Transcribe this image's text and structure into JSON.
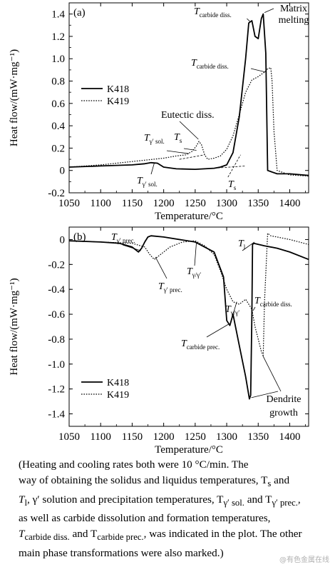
{
  "chart_data": [
    {
      "panel_label": "(a)",
      "type": "line",
      "xlabel": "Temperature/°C",
      "ylabel": "Heat flow/(mW·mg⁻¹)",
      "xlim": [
        1050,
        1430
      ],
      "ylim": [
        -0.2,
        1.5
      ],
      "xticks": [
        "1050",
        "1100",
        "1150",
        "1200",
        "1250",
        "1300",
        "1350",
        "1400"
      ],
      "yticks": [
        "1.4",
        "1.2",
        "1.0",
        "0.8",
        "0.6",
        "0.4",
        "0.2",
        "0",
        "-0.2"
      ],
      "legend": [
        "K418",
        "K419"
      ],
      "series": [
        {
          "name": "K418",
          "x": [
            1050,
            1100,
            1150,
            1170,
            1180,
            1190,
            1200,
            1220,
            1250,
            1280,
            1290,
            1300,
            1310,
            1320,
            1330,
            1335,
            1340,
            1345,
            1350,
            1355,
            1358,
            1362,
            1365,
            1380,
            1400,
            1430
          ],
          "y": [
            0.03,
            0.04,
            0.05,
            0.06,
            0.07,
            0.065,
            0.03,
            0.015,
            0.01,
            0.02,
            0.03,
            0.05,
            0.16,
            0.48,
            1.0,
            1.32,
            1.34,
            1.2,
            1.18,
            1.36,
            1.4,
            1.05,
            0.0,
            -0.03,
            -0.03,
            -0.045
          ]
        },
        {
          "name": "K419",
          "x": [
            1050,
            1100,
            1150,
            1200,
            1220,
            1235,
            1245,
            1252,
            1256,
            1260,
            1265,
            1270,
            1280,
            1290,
            1300,
            1310,
            1320,
            1330,
            1340,
            1350,
            1355,
            1360,
            1365,
            1370,
            1372,
            1375,
            1380,
            1400,
            1430
          ],
          "y": [
            0.03,
            0.05,
            0.08,
            0.11,
            0.13,
            0.14,
            0.17,
            0.22,
            0.26,
            0.23,
            0.14,
            0.1,
            0.11,
            0.13,
            0.19,
            0.31,
            0.5,
            0.7,
            0.81,
            0.84,
            0.86,
            0.88,
            0.91,
            0.92,
            0.8,
            0.35,
            0.0,
            -0.04,
            -0.05
          ]
        }
      ],
      "annotations": [
        {
          "main": "T",
          "sub": "carbide diss.",
          "at_x": 1340,
          "at_y": 1.34
        },
        {
          "main": "Matrix",
          "line2": "melting",
          "at_x": 1358,
          "at_y": 1.4
        },
        {
          "main": "T",
          "sub": "carbide diss.",
          "at_x": 1370,
          "at_y": 0.92
        },
        {
          "main": "Eutectic diss.",
          "at_x": 1256,
          "at_y": 0.26
        },
        {
          "main": "T",
          "sub": "γ′ sol.",
          "at_x": 1230,
          "at_y": 0.14
        },
        {
          "main": "T",
          "sub": "s",
          "at_x": 1255,
          "at_y": 0.16
        },
        {
          "main": "T",
          "sub": "γ′ sol.",
          "at_x": 1180,
          "at_y": 0.07
        },
        {
          "main": "T",
          "sub": "s",
          "at_x": 1308,
          "at_y": 0.03
        }
      ]
    },
    {
      "panel_label": "(b)",
      "type": "line",
      "xlabel": "Temperature/°C",
      "ylabel": "Heat flow/(mW·mg⁻¹)",
      "xlim": [
        1050,
        1430
      ],
      "ylim": [
        -1.5,
        0.1
      ],
      "xticks": [
        "1050",
        "1100",
        "1150",
        "1200",
        "1250",
        "1300",
        "1350",
        "1400"
      ],
      "yticks": [
        "0",
        "-0.2",
        "-0.4",
        "-0.6",
        "-0.8",
        "-1.0",
        "-1.2",
        "-1.4"
      ],
      "legend": [
        "K418",
        "K419"
      ],
      "series": [
        {
          "name": "K418",
          "x": [
            1050,
            1100,
            1130,
            1150,
            1160,
            1165,
            1170,
            1175,
            1180,
            1200,
            1250,
            1280,
            1295,
            1300,
            1305,
            1310,
            1320,
            1330,
            1336,
            1338,
            1340,
            1341,
            1343,
            1360,
            1380,
            1400,
            1430
          ],
          "y": [
            -0.01,
            -0.02,
            -0.03,
            -0.06,
            -0.1,
            -0.07,
            -0.02,
            0.02,
            0.03,
            0.02,
            -0.02,
            -0.1,
            -0.3,
            -0.65,
            -0.69,
            -0.6,
            -0.85,
            -1.1,
            -1.28,
            -1.25,
            -0.6,
            -0.04,
            -0.03,
            -0.05,
            -0.07,
            -0.1,
            -0.16
          ]
        },
        {
          "name": "K419",
          "x": [
            1050,
            1100,
            1150,
            1170,
            1178,
            1185,
            1195,
            1210,
            1230,
            1250,
            1265,
            1280,
            1290,
            1300,
            1310,
            1320,
            1330,
            1340,
            1345,
            1350,
            1355,
            1358,
            1360,
            1365,
            1370,
            1380,
            1400,
            1430
          ],
          "y": [
            -0.01,
            -0.02,
            -0.03,
            -0.06,
            -0.12,
            -0.16,
            -0.12,
            -0.06,
            -0.02,
            -0.01,
            -0.05,
            -0.12,
            -0.25,
            -0.4,
            -0.5,
            -0.52,
            -0.48,
            -0.56,
            -0.7,
            -0.8,
            -0.9,
            -0.93,
            -0.5,
            0.05,
            0.03,
            0.02,
            0.0,
            -0.04
          ]
        }
      ],
      "annotations": [
        {
          "main": "T",
          "sub": "γ′ prec.",
          "at_x": 1163,
          "at_y": -0.09
        },
        {
          "main": "T",
          "sub": "γ′ prec.",
          "at_x": 1185,
          "at_y": -0.15
        },
        {
          "main": "T",
          "sub": "γ/γ′",
          "at_x": 1250,
          "at_y": -0.01
        },
        {
          "main": "T",
          "sub": "l",
          "at_x": 1343,
          "at_y": -0.03
        },
        {
          "main": "T",
          "sub": "γ/γ′",
          "at_x": 1320,
          "at_y": -0.52
        },
        {
          "main": "T",
          "sub": "carbide diss.",
          "at_x": 1340,
          "at_y": -0.56
        },
        {
          "main": "T",
          "sub": "carbide prec.",
          "at_x": 1305,
          "at_y": -0.69
        },
        {
          "main": "Dendrite",
          "line2": "growth",
          "at_x": 1338,
          "at_y": -1.25
        }
      ]
    }
  ],
  "caption": [
    "(Heating and cooling rates both were 10 °C/min. The",
    "way of obtaining the solidus and liquidus temperatures, T",
    "s",
    " and",
    "T",
    "l",
    ", γ′ solution and precipitation temperatures, T",
    "γ′ sol.",
    " and T",
    "γ′ prec.",
    ",",
    "as well as carbide dissolution and formation temperatures,",
    "T",
    "carbide diss.",
    " and T",
    "carbide prec.",
    ", was indicated in the plot. The other",
    "main phase transformations were also marked.)"
  ],
  "watermark": "@有色金属在线"
}
